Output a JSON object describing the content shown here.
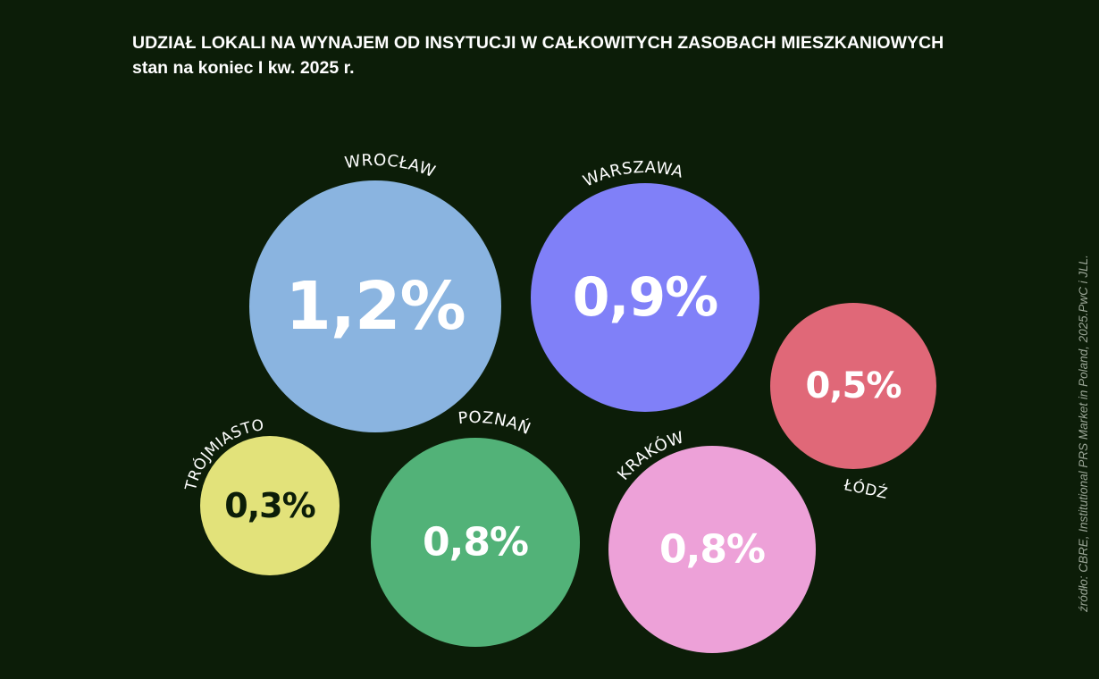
{
  "header": {
    "title": "UDZIAŁ LOKALI NA WYNAJEM OD INSYTUCJI W CAŁKOWITYCH ZASOBACH MIESZKANIOWYCH",
    "subtitle": "stan na koniec I kw. 2025 r."
  },
  "source": "źródło: CBRE, Institutional PRS Market in Poland, 2025.PwC i JLL.",
  "chart_data": {
    "type": "bubble",
    "title": "UDZIAŁ LOKALI NA WYNAJEM OD INSYTUCJI W CAŁKOWITYCH ZASOBACH MIESZKANIOWYCH",
    "subtitle": "stan na koniec I kw. 2025 r.",
    "unit": "%",
    "categories": [
      "WROCŁAW",
      "WARSZAWA",
      "ŁÓDŹ",
      "TRÓJMIASTO",
      "POZNAŃ",
      "KRAKÓW"
    ],
    "values": [
      1.2,
      0.9,
      0.5,
      0.3,
      0.8,
      0.8
    ],
    "labels": [
      "1,2%",
      "0,9%",
      "0,5%",
      "0,3%",
      "0,8%",
      "0,8%"
    ],
    "colors": [
      "#8ab4e0",
      "#8080f8",
      "#e06878",
      "#e2e27a",
      "#52b278",
      "#eda1d8"
    ],
    "label_colors": [
      "#ffffff",
      "#ffffff",
      "#ffffff",
      "#0c1d08",
      "#ffffff",
      "#ffffff"
    ]
  }
}
